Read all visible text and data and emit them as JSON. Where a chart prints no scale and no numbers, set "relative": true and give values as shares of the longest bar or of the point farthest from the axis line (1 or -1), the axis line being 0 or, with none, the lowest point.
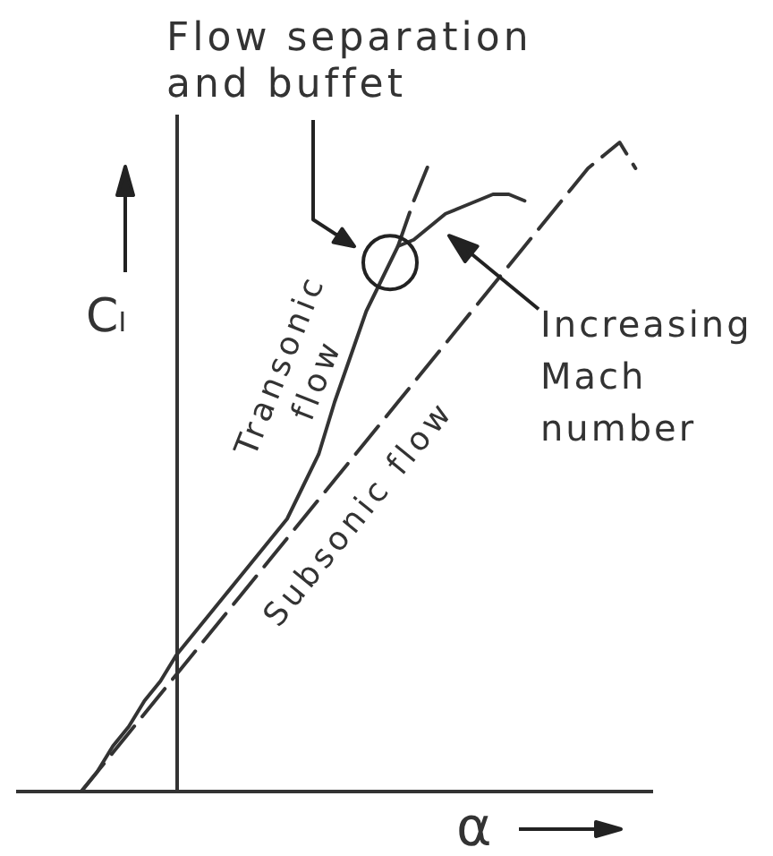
{
  "chart_data": {
    "type": "line",
    "annotations": [
      "Flow separation and buffet",
      "Increasing Mach number"
    ],
    "xlabel": "α",
    "ylabel": "Cₗ",
    "relative": true,
    "marker": "none",
    "categories": [
      null,
      null,
      null,
      null,
      null,
      null,
      null,
      null,
      null,
      null,
      null,
      null,
      null,
      null,
      null,
      null,
      null,
      null,
      null,
      null,
      null,
      null,
      null,
      null,
      null,
      null,
      null,
      null,
      null,
      null,
      null,
      null,
      null,
      null,
      null,
      null,
      null,
      null,
      null,
      null,
      null
    ],
    "series": [
      {
        "name": "Transonic flow",
        "color": "#333333",
        "line_style": "solid",
        "values": [
          null,
          null,
          null,
          null,
          0,
          0.03,
          0.07,
          0.1,
          0.14,
          0.17,
          0.21,
          0.24,
          0.27,
          0.3,
          0.33,
          0.36,
          0.39,
          0.42,
          0.47,
          0.52,
          0.6,
          0.67,
          0.74,
          0.79,
          0.84,
          0.85,
          0.87,
          0.89,
          0.9,
          0.91,
          0.92,
          0.92,
          0.91,
          null,
          null,
          null,
          null,
          null,
          null,
          null,
          null
        ]
      },
      {
        "color": "#333333",
        "line_style": "dashed",
        "values": [
          null,
          null,
          null,
          null,
          null,
          null,
          null,
          null,
          null,
          null,
          null,
          null,
          null,
          null,
          null,
          null,
          null,
          null,
          null,
          null,
          null,
          null,
          null,
          null,
          0.84,
          0.91,
          0.97,
          null,
          null,
          null,
          null,
          null,
          null,
          null,
          null,
          null,
          null,
          null,
          null,
          null,
          null
        ]
      },
      {
        "name": "Subsonic flow",
        "color": "#333333",
        "line_style": "dashed",
        "values": [
          null,
          null,
          null,
          null,
          0,
          0.03,
          0.06,
          0.09,
          0.12,
          0.15,
          0.18,
          0.21,
          0.24,
          0.27,
          0.3,
          0.33,
          0.36,
          0.39,
          0.42,
          0.45,
          0.48,
          0.51,
          0.54,
          0.57,
          0.6,
          0.63,
          0.66,
          0.69,
          0.72,
          0.75,
          0.78,
          0.81,
          0.84,
          0.87,
          0.9,
          0.93,
          0.96,
          0.98,
          1,
          0.96,
          null
        ]
      }
    ]
  }
}
